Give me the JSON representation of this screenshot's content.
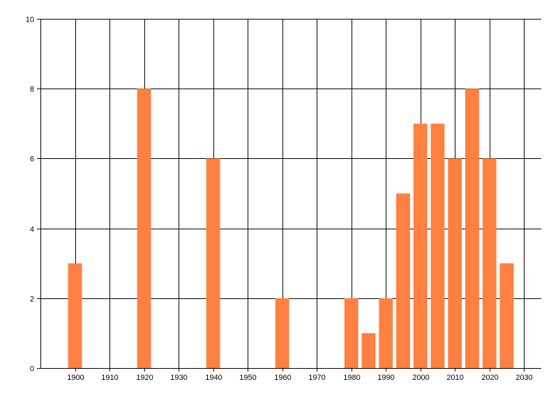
{
  "chart_data": {
    "type": "bar",
    "title": "",
    "xlabel": "",
    "ylabel": "",
    "x": [
      1900,
      1920,
      1940,
      1960,
      1980,
      1985,
      1990,
      1995,
      2000,
      2005,
      2010,
      2015,
      2020,
      2025
    ],
    "values": [
      3,
      8,
      6,
      2,
      2,
      1,
      2,
      5,
      7,
      7,
      6,
      8,
      6,
      3
    ],
    "bar_width_years": 4,
    "xlim": [
      1890,
      2035
    ],
    "ylim": [
      0,
      10
    ],
    "xticks": [
      1900,
      1910,
      1920,
      1930,
      1940,
      1950,
      1960,
      1970,
      1980,
      1990,
      2000,
      2010,
      2020,
      2030
    ],
    "yticks": [
      0,
      2,
      4,
      6,
      8,
      10
    ],
    "grid": true,
    "legend": "none",
    "bar_color": "#ff8040",
    "grid_color": "#000000"
  }
}
